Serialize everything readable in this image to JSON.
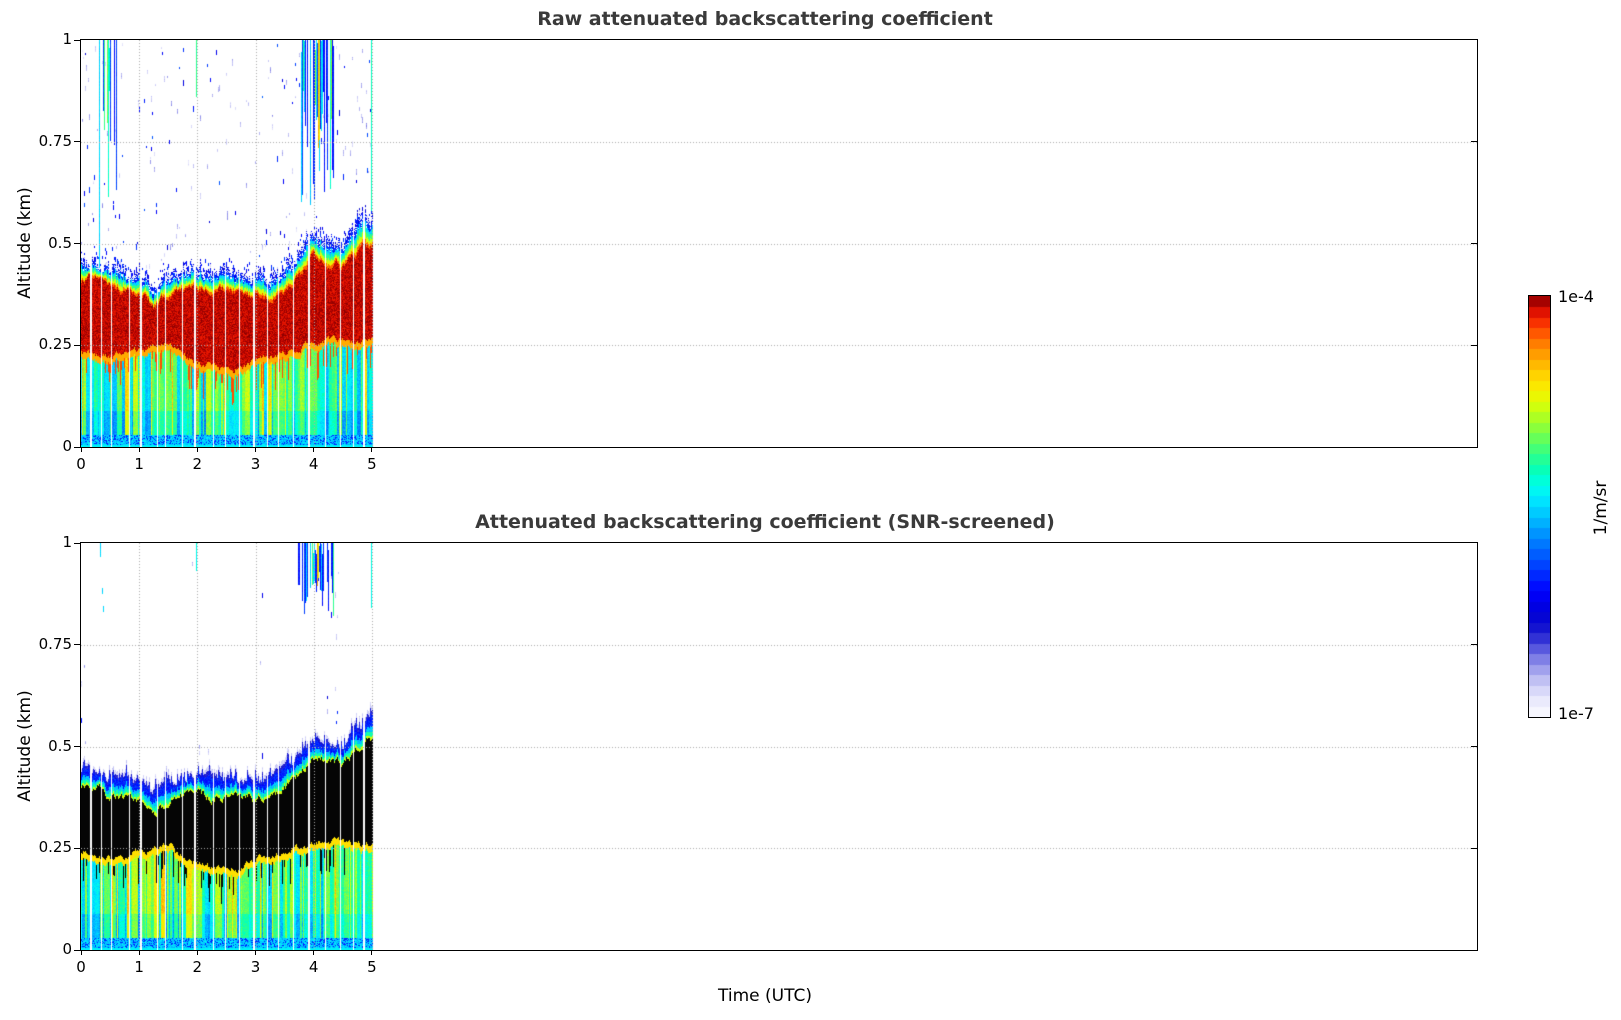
{
  "figure": {
    "background": "#ffffff"
  },
  "colorbar": {
    "top_label": "1e-4",
    "bottom_label": "1e-7",
    "unit_label": "1/m/sr",
    "levels": 40,
    "colormap_stops": [
      [
        0.0,
        "#fbfbff"
      ],
      [
        0.03,
        "#efeffd"
      ],
      [
        0.055,
        "#dedefa"
      ],
      [
        0.08,
        "#c9c9f5"
      ],
      [
        0.105,
        "#ababef"
      ],
      [
        0.13,
        "#8b8be8"
      ],
      [
        0.16,
        "#5c5cdf"
      ],
      [
        0.19,
        "#2d2dd4"
      ],
      [
        0.22,
        "#0b0bce"
      ],
      [
        0.25,
        "#0000d8"
      ],
      [
        0.3,
        "#0000ff"
      ],
      [
        0.36,
        "#0040ff"
      ],
      [
        0.42,
        "#0080ff"
      ],
      [
        0.47,
        "#00baff"
      ],
      [
        0.52,
        "#00eaff"
      ],
      [
        0.55,
        "#00ffea"
      ],
      [
        0.58,
        "#00ffc0"
      ],
      [
        0.62,
        "#2bff8e"
      ],
      [
        0.66,
        "#62ff5c"
      ],
      [
        0.7,
        "#9cff2e"
      ],
      [
        0.74,
        "#d2ff0c"
      ],
      [
        0.77,
        "#f2f400"
      ],
      [
        0.8,
        "#ffe000"
      ],
      [
        0.83,
        "#ffc100"
      ],
      [
        0.86,
        "#ffa000"
      ],
      [
        0.89,
        "#ff7a00"
      ],
      [
        0.92,
        "#ff4d00"
      ],
      [
        0.945,
        "#f52500"
      ],
      [
        0.965,
        "#dd0f00"
      ],
      [
        0.98,
        "#b80400"
      ],
      [
        1.0,
        "#860000"
      ]
    ]
  },
  "chart_data": [
    {
      "type": "heatmap",
      "title": "Raw attenuated backscattering coefficient",
      "xlabel": "",
      "ylabel": "Altitude (km)",
      "xlim": [
        0,
        24
      ],
      "ylim": [
        0,
        1
      ],
      "xticks": [
        0,
        1,
        2,
        3,
        4,
        5
      ],
      "yticks": [
        0,
        0.25,
        0.5,
        0.75,
        1
      ],
      "xtick_labels": [
        "0",
        "1",
        "2",
        "3",
        "4",
        "5"
      ],
      "ytick_labels": [
        "0",
        "0.25",
        "0.5",
        "0.75",
        "1"
      ],
      "grid": "dotted",
      "legend_position": "none",
      "value_scale": {
        "min": "1e-7",
        "max": "1e-4",
        "units": "1/m/sr"
      },
      "data_time_range": [
        0,
        5
      ],
      "core_style": "saturated-red",
      "profile_times": [
        0,
        0.25,
        0.5,
        0.75,
        1,
        1.25,
        1.5,
        1.75,
        2,
        2.25,
        2.5,
        2.75,
        3,
        3.25,
        3.5,
        3.75,
        4,
        4.25,
        4.5,
        4.75,
        5
      ],
      "core_top_km": [
        0.41,
        0.415,
        0.39,
        0.385,
        0.385,
        0.345,
        0.37,
        0.39,
        0.39,
        0.38,
        0.385,
        0.375,
        0.37,
        0.375,
        0.39,
        0.43,
        0.475,
        0.46,
        0.445,
        0.48,
        0.5
      ],
      "core_base_km": [
        0.235,
        0.225,
        0.22,
        0.23,
        0.24,
        0.245,
        0.25,
        0.225,
        0.21,
        0.2,
        0.195,
        0.205,
        0.215,
        0.225,
        0.235,
        0.245,
        0.26,
        0.27,
        0.265,
        0.255,
        0.26
      ],
      "fringe_top_km": [
        0.455,
        0.46,
        0.44,
        0.43,
        0.43,
        0.4,
        0.42,
        0.44,
        0.445,
        0.43,
        0.435,
        0.425,
        0.42,
        0.43,
        0.45,
        0.49,
        0.53,
        0.52,
        0.51,
        0.55,
        0.575
      ],
      "gap_times": [
        0.15,
        0.34,
        0.52,
        0.83,
        1.02,
        1.3,
        1.45,
        1.74,
        1.95,
        2.27,
        2.47,
        2.72,
        2.95,
        3.2,
        3.38,
        3.64,
        3.9,
        4.2,
        4.45,
        4.68,
        4.85
      ],
      "noise_clusters": [
        {
          "t_start": 0.27,
          "t_end": 0.63,
          "density": 0.4,
          "alt_bottom_range": [
            0.5,
            0.88
          ],
          "alt_top": 1.0
        },
        {
          "t_start": 3.78,
          "t_end": 4.34,
          "density": 0.78,
          "alt_bottom_range": [
            0.55,
            0.88
          ],
          "alt_top": 1.0,
          "orange_streak_t": 4.07
        }
      ],
      "isolated_streaks": [
        {
          "t": 0.31,
          "color_value": 0.5,
          "alt_bottom": 0.44,
          "alt_top": 1.0
        },
        {
          "t": 1.98,
          "color_value": 0.62,
          "alt_bottom": 0.86,
          "alt_top": 1.0
        },
        {
          "t": 4.99,
          "color_value": 0.58,
          "alt_bottom": 0.58,
          "alt_top": 1.0
        }
      ]
    },
    {
      "type": "heatmap",
      "title": "Attenuated backscattering coefficient (SNR-screened)",
      "xlabel": "Time (UTC)",
      "ylabel": "Altitude (km)",
      "xlim": [
        0,
        24
      ],
      "ylim": [
        0,
        1
      ],
      "xticks": [
        0,
        1,
        2,
        3,
        4,
        5
      ],
      "yticks": [
        0,
        0.25,
        0.5,
        0.75,
        1
      ],
      "xtick_labels": [
        "0",
        "1",
        "2",
        "3",
        "4",
        "5"
      ],
      "ytick_labels": [
        "0",
        "0.25",
        "0.5",
        "0.75",
        "1"
      ],
      "grid": "dotted",
      "legend_position": "none",
      "value_scale": {
        "min": "1e-7",
        "max": "1e-4",
        "units": "1/m/sr"
      },
      "data_time_range": [
        0,
        5
      ],
      "core_style": "black-screened",
      "profile_times": [
        0,
        0.25,
        0.5,
        0.75,
        1,
        1.25,
        1.5,
        1.75,
        2,
        2.25,
        2.5,
        2.75,
        3,
        3.25,
        3.5,
        3.75,
        4,
        4.25,
        4.5,
        4.75,
        5
      ],
      "core_top_km": [
        0.4,
        0.4,
        0.38,
        0.375,
        0.375,
        0.35,
        0.365,
        0.385,
        0.385,
        0.375,
        0.38,
        0.375,
        0.37,
        0.375,
        0.395,
        0.44,
        0.47,
        0.465,
        0.46,
        0.5,
        0.52
      ],
      "core_base_km": [
        0.24,
        0.23,
        0.225,
        0.235,
        0.245,
        0.25,
        0.255,
        0.23,
        0.215,
        0.205,
        0.2,
        0.21,
        0.22,
        0.23,
        0.24,
        0.25,
        0.265,
        0.275,
        0.27,
        0.26,
        0.265
      ],
      "fringe_top_km": [
        0.455,
        0.455,
        0.435,
        0.43,
        0.43,
        0.405,
        0.42,
        0.44,
        0.44,
        0.43,
        0.435,
        0.43,
        0.425,
        0.43,
        0.45,
        0.5,
        0.53,
        0.525,
        0.52,
        0.56,
        0.585
      ],
      "gap_times": [
        0.15,
        0.34,
        0.52,
        0.83,
        1.02,
        1.3,
        1.45,
        1.74,
        1.95,
        2.27,
        2.47,
        2.72,
        2.95,
        3.2,
        3.38,
        3.64,
        3.9,
        4.2,
        4.45,
        4.68,
        4.85
      ],
      "noise_clusters": [
        {
          "t_start": 3.73,
          "t_end": 4.34,
          "density": 0.8,
          "alt_bottom_range": [
            0.82,
            0.93
          ],
          "alt_top": 1.0,
          "orange_streak_t": 4.05
        }
      ],
      "isolated_streaks": [
        {
          "t": 0.33,
          "color_value": 0.5,
          "alt_bottom": 0.965,
          "alt_top": 1.0
        },
        {
          "t": 0.36,
          "color_value": 0.5,
          "alt_bottom": 0.875,
          "alt_top": 0.89
        },
        {
          "t": 0.37,
          "color_value": 0.5,
          "alt_bottom": 0.83,
          "alt_top": 0.845
        },
        {
          "t": 1.98,
          "color_value": 0.55,
          "alt_bottom": 0.93,
          "alt_top": 1.0
        },
        {
          "t": 4.99,
          "color_value": 0.55,
          "alt_bottom": 0.84,
          "alt_top": 1.0
        }
      ]
    }
  ]
}
